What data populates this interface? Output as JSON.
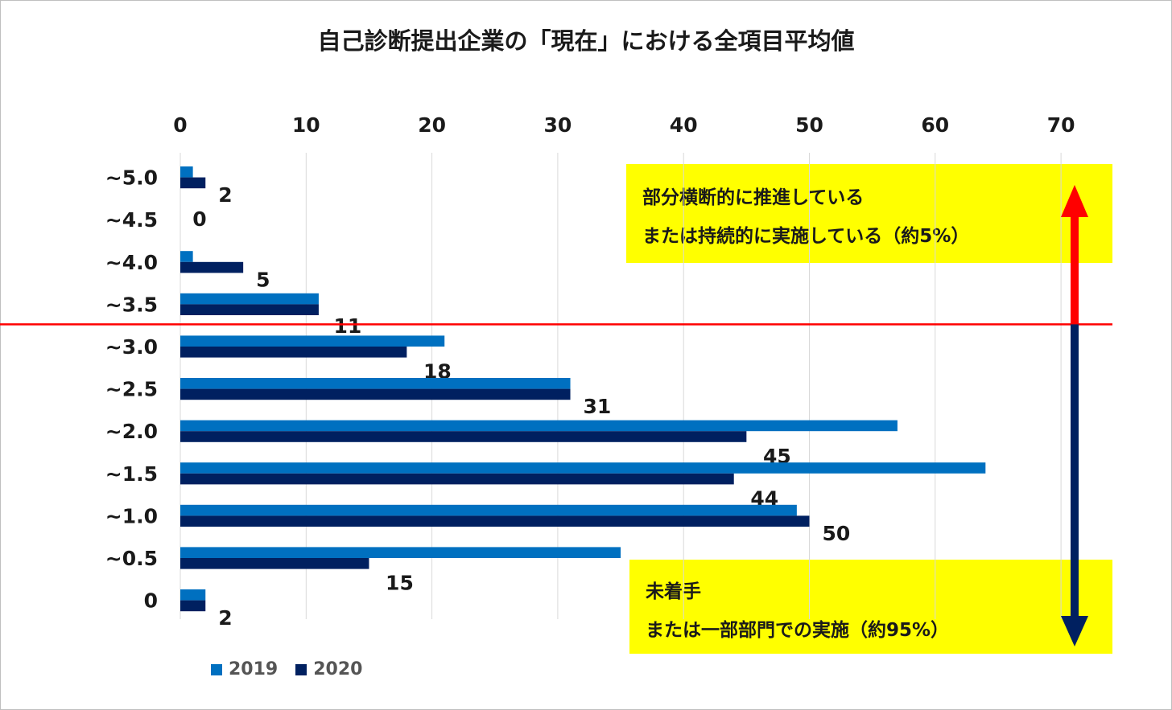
{
  "chart_data": {
    "type": "bar",
    "orientation": "horizontal",
    "title": "自己診断提出企業の「現在」における全項目平均値",
    "categories": [
      "~5.0",
      "~4.5",
      "~4.0",
      "~3.5",
      "~3.0",
      "~2.5",
      "~2.0",
      "~1.5",
      "~1.0",
      "~0.5",
      "0"
    ],
    "series": [
      {
        "name": "2019",
        "color": "#0070c0",
        "values": [
          1,
          0,
          1,
          11,
          21,
          31,
          57,
          64,
          49,
          35,
          2
        ]
      },
      {
        "name": "2020",
        "color": "#002060",
        "values": [
          2,
          0,
          5,
          11,
          18,
          31,
          45,
          44,
          50,
          15,
          2
        ]
      }
    ],
    "data_labels": [
      "2",
      "0",
      "5",
      "11",
      "18",
      "31",
      "45",
      "44",
      "50",
      "15",
      "2"
    ],
    "x_ticks": [
      "0",
      "10",
      "20",
      "30",
      "40",
      "50",
      "60",
      "70"
    ],
    "xlim": [
      0,
      74
    ],
    "axis_position": "top",
    "grid": true,
    "legend_position": "bottom-left",
    "threshold_between": [
      "~3.5",
      "~3.0"
    ],
    "threshold_color": "#ff0000",
    "arrow_up_color": "#ff0000",
    "arrow_down_color": "#002060"
  },
  "annotations": {
    "upper": {
      "color": "#ffff00",
      "line1": "部分横断的に推進している",
      "line2": "または持続的に実施している（約5%）"
    },
    "lower": {
      "color": "#ffff00",
      "line1": "未着手",
      "line2": "または一部部門での実施（約95%）"
    }
  }
}
